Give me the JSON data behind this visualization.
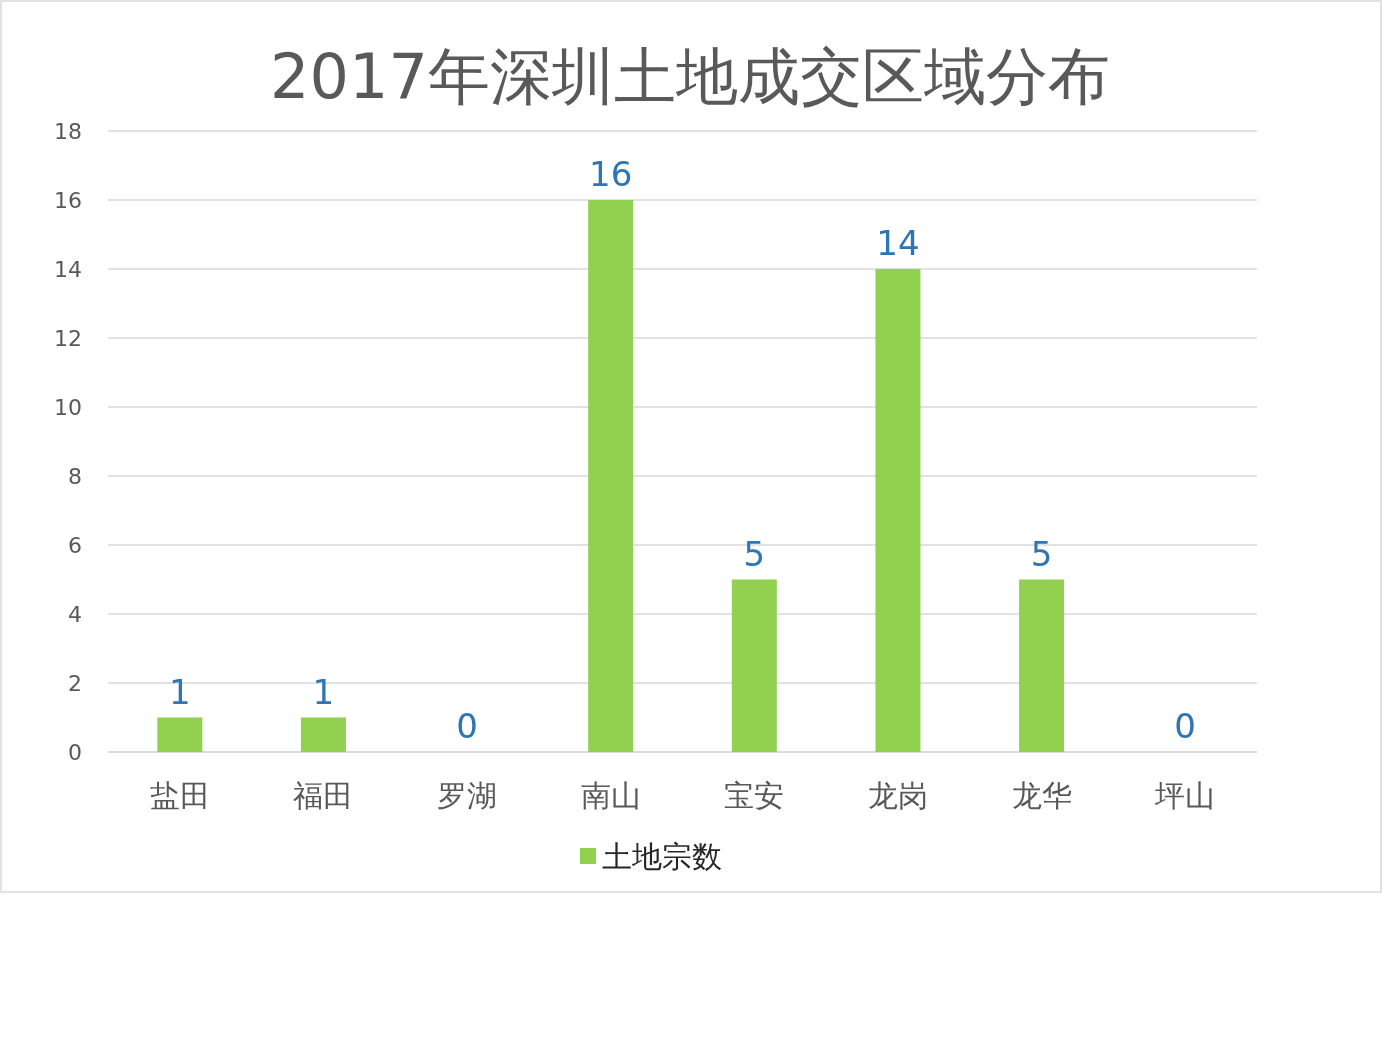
{
  "chart_data": {
    "type": "bar",
    "title": "2017年深圳土地成交区域分布",
    "categories": [
      "盐田",
      "福田",
      "罗湖",
      "南山",
      "宝安",
      "龙岗",
      "龙华",
      "坪山"
    ],
    "series": [
      {
        "name": "土地宗数",
        "color": "#92d050",
        "values": [
          1,
          1,
          0,
          16,
          5,
          14,
          5,
          0
        ]
      }
    ],
    "ylim": [
      0,
      18
    ],
    "yticks": [
      0,
      2,
      4,
      6,
      8,
      10,
      12,
      14,
      16,
      18
    ],
    "grid": "y",
    "data_labels": true,
    "legend": "bottom"
  }
}
